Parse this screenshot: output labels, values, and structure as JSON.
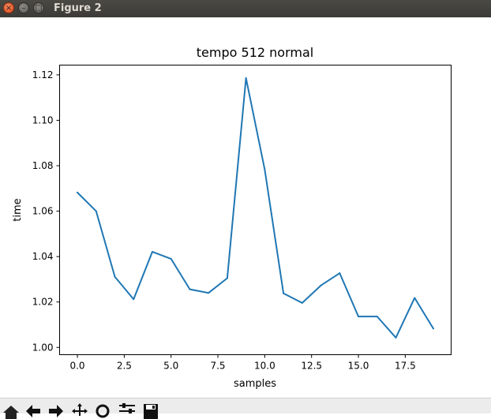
{
  "window": {
    "title": "Figure 2",
    "close_glyph": "×",
    "minimize_glyph": "–",
    "maximize_glyph": "□"
  },
  "toolbar": {
    "tools": [
      "home-icon",
      "back-icon",
      "forward-icon",
      "pan-icon",
      "zoom-icon",
      "configure-subplots-icon",
      "save-icon"
    ]
  },
  "chart_data": {
    "type": "line",
    "title": "tempo 512 normal",
    "xlabel": "samples",
    "ylabel": "time",
    "xlim": [
      -0.95,
      19.95
    ],
    "ylim": [
      0.9968,
      1.1243
    ],
    "xticks": [
      0.0,
      2.5,
      5.0,
      7.5,
      10.0,
      12.5,
      15.0,
      17.5
    ],
    "xtick_labels": [
      "0.0",
      "2.5",
      "5.0",
      "7.5",
      "10.0",
      "12.5",
      "15.0",
      "17.5"
    ],
    "yticks": [
      1.0,
      1.02,
      1.04,
      1.06,
      1.08,
      1.1,
      1.12
    ],
    "ytick_labels": [
      "1.00",
      "1.02",
      "1.04",
      "1.06",
      "1.08",
      "1.10",
      "1.12"
    ],
    "grid": false,
    "series_color": "#1f77b4",
    "series": [
      {
        "x": [
          0,
          1,
          2,
          3,
          4,
          5,
          6,
          7,
          8,
          9,
          10,
          11,
          12,
          13,
          14,
          15,
          16,
          17,
          18,
          19
        ],
        "values": [
          1.0682,
          1.06,
          1.0311,
          1.0212,
          1.0421,
          1.039,
          1.0256,
          1.024,
          1.0305,
          1.1186,
          1.0783,
          1.0238,
          1.0196,
          1.0273,
          1.0327,
          1.0136,
          1.0136,
          1.0043,
          1.0218,
          1.0083
        ]
      }
    ]
  }
}
